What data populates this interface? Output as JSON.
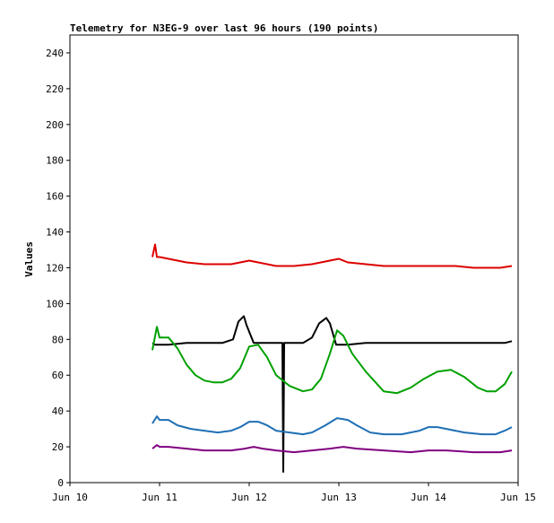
{
  "chart_data": {
    "type": "line",
    "title": "Telemetry for N3EG-9 over last 96 hours (190 points)",
    "xlabel": "",
    "ylabel": "Values",
    "x_ticks": [
      "Jun 10",
      "Jun 11",
      "Jun 12",
      "Jun 13",
      "Jun 14",
      "Jun 15"
    ],
    "x_range_days": [
      10,
      15
    ],
    "ylim": [
      0,
      250
    ],
    "y_ticks": [
      0,
      20,
      40,
      60,
      80,
      100,
      120,
      140,
      160,
      180,
      200,
      220,
      240
    ],
    "grid": false,
    "legend": "none",
    "series": [
      {
        "color": "#dd0000",
        "x": [
          10.92,
          10.95,
          10.97,
          11.0,
          11.1,
          11.3,
          11.5,
          11.8,
          11.9,
          12.0,
          12.1,
          12.3,
          12.5,
          12.7,
          12.9,
          13.0,
          13.1,
          13.3,
          13.5,
          13.8,
          14.0,
          14.3,
          14.5,
          14.8,
          14.93
        ],
        "y": [
          126,
          133,
          126,
          126,
          125,
          123,
          122,
          122,
          123,
          124,
          123,
          121,
          121,
          122,
          124,
          125,
          123,
          122,
          121,
          121,
          121,
          121,
          120,
          120,
          121
        ]
      },
      {
        "color": "#000000",
        "x": [
          10.92,
          10.95,
          11.0,
          11.1,
          11.3,
          11.5,
          11.7,
          11.82,
          11.88,
          11.94,
          11.97,
          12.05,
          12.2,
          12.33,
          12.37,
          12.38,
          12.39,
          12.41,
          12.6,
          12.7,
          12.78,
          12.86,
          12.9,
          12.97,
          13.1,
          13.3,
          13.6,
          14.0,
          14.5,
          14.85,
          14.93
        ],
        "y": [
          78,
          77,
          77,
          77,
          78,
          78,
          78,
          80,
          90,
          93,
          88,
          78,
          78,
          78,
          78,
          6,
          78,
          78,
          78,
          81,
          89,
          92,
          89,
          77,
          77,
          78,
          78,
          78,
          78,
          78,
          79
        ]
      },
      {
        "color": "#00a000",
        "x": [
          10.92,
          10.97,
          11.0,
          11.1,
          11.2,
          11.3,
          11.4,
          11.5,
          11.6,
          11.7,
          11.8,
          11.9,
          12.0,
          12.1,
          12.2,
          12.3,
          12.45,
          12.6,
          12.7,
          12.8,
          12.9,
          12.98,
          13.05,
          13.15,
          13.3,
          13.5,
          13.65,
          13.8,
          13.95,
          14.1,
          14.25,
          14.4,
          14.55,
          14.65,
          14.75,
          14.85,
          14.93
        ],
        "y": [
          74,
          87,
          81,
          81,
          75,
          66,
          60,
          57,
          56,
          56,
          58,
          64,
          76,
          77,
          70,
          60,
          54,
          51,
          52,
          58,
          72,
          85,
          82,
          72,
          62,
          51,
          50,
          53,
          58,
          62,
          63,
          59,
          53,
          51,
          51,
          55,
          62
        ]
      },
      {
        "color": "#1f6fb4",
        "x": [
          10.92,
          10.97,
          11.0,
          11.1,
          11.2,
          11.35,
          11.5,
          11.65,
          11.8,
          11.9,
          12.0,
          12.1,
          12.2,
          12.3,
          12.45,
          12.6,
          12.7,
          12.85,
          12.98,
          13.1,
          13.2,
          13.35,
          13.5,
          13.7,
          13.9,
          14.0,
          14.1,
          14.2,
          14.4,
          14.6,
          14.75,
          14.85,
          14.93
        ],
        "y": [
          33,
          37,
          35,
          35,
          32,
          30,
          29,
          28,
          29,
          31,
          34,
          34,
          32,
          29,
          28,
          27,
          28,
          32,
          36,
          35,
          32,
          28,
          27,
          27,
          29,
          31,
          31,
          30,
          28,
          27,
          27,
          29,
          31
        ]
      },
      {
        "color": "#800080",
        "x": [
          10.92,
          10.97,
          11.0,
          11.1,
          11.3,
          11.5,
          11.8,
          11.95,
          12.05,
          12.15,
          12.3,
          12.5,
          12.7,
          12.9,
          13.05,
          13.2,
          13.5,
          13.8,
          14.0,
          14.2,
          14.5,
          14.8,
          14.93
        ],
        "y": [
          19,
          21,
          20,
          20,
          19,
          18,
          18,
          19,
          20,
          19,
          18,
          17,
          18,
          19,
          20,
          19,
          18,
          17,
          18,
          18,
          17,
          17,
          18
        ]
      }
    ]
  }
}
